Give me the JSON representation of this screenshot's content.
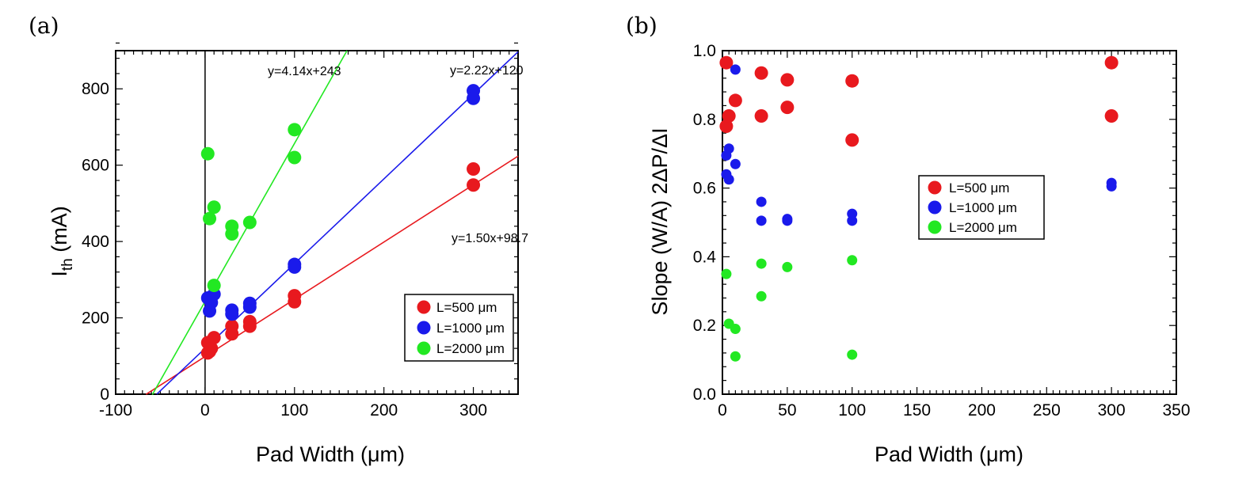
{
  "chart_data": [
    {
      "type": "scatter",
      "panel_label": "(a)",
      "xlabel": "Pad Width  (μm)",
      "ylabel": "I",
      "ylabel_sub": "th",
      "ylabel_unit": " (mA)",
      "xlim": [
        -100,
        350
      ],
      "ylim": [
        0,
        900
      ],
      "xticks": [
        -100,
        0,
        100,
        200,
        300
      ],
      "yticks": [
        0,
        200,
        400,
        600,
        800
      ],
      "vertical_zero_line": true,
      "series": [
        {
          "name": "L=500  μm",
          "color": "#e8191e",
          "x": [
            3,
            3,
            5,
            7,
            10,
            30,
            30,
            50,
            50,
            100,
            100,
            300,
            300
          ],
          "y": [
            135,
            108,
            112,
            120,
            148,
            178,
            158,
            190,
            178,
            258,
            242,
            590,
            548
          ]
        },
        {
          "name": "L=1000 μm",
          "color": "#1a1aeb",
          "x": [
            3,
            5,
            7,
            10,
            30,
            30,
            50,
            50,
            100,
            100,
            300,
            300
          ],
          "y": [
            252,
            218,
            240,
            262,
            220,
            210,
            238,
            228,
            340,
            333,
            795,
            775
          ]
        },
        {
          "name": "L=2000  μm",
          "color": "#22e822",
          "x": [
            3,
            5,
            10,
            10,
            30,
            30,
            50,
            100,
            100
          ],
          "y": [
            630,
            460,
            490,
            285,
            440,
            420,
            450,
            693,
            620
          ]
        }
      ],
      "fits": [
        {
          "label": "y=1.50x+98.7",
          "slope": 1.5,
          "intercept": 98.7,
          "color": "#e8191e",
          "x_range": [
            -66,
            350
          ]
        },
        {
          "label": "y=2.22x+120",
          "slope": 2.22,
          "intercept": 120,
          "color": "#1a1aeb",
          "x_range": [
            -54,
            350
          ]
        },
        {
          "label": "y=4.14x+243",
          "slope": 4.14,
          "intercept": 243,
          "color": "#22e822",
          "x_range": [
            -59,
            159
          ]
        }
      ],
      "legend_placement": "bottom-right"
    },
    {
      "type": "scatter",
      "panel_label": "(b)",
      "xlabel": "Pad Width (μm)",
      "ylabel": "Slope (W/A) 2ΔP/ΔI",
      "xlim": [
        0,
        350
      ],
      "ylim": [
        0,
        1.0
      ],
      "xticks": [
        0,
        50,
        100,
        150,
        200,
        250,
        300,
        350
      ],
      "yticks": [
        0.0,
        0.2,
        0.4,
        0.6,
        0.8,
        1.0
      ],
      "series": [
        {
          "name": "L=500 μm",
          "color": "#e8191e",
          "x": [
            3,
            3,
            5,
            10,
            30,
            30,
            50,
            50,
            100,
            100,
            300,
            300
          ],
          "y": [
            0.965,
            0.78,
            0.81,
            0.855,
            0.935,
            0.81,
            0.915,
            0.835,
            0.912,
            0.74,
            0.965,
            0.81
          ]
        },
        {
          "name": "L=1000 μm",
          "color": "#1a1aeb",
          "x": [
            3,
            3,
            5,
            5,
            10,
            10,
            30,
            30,
            50,
            50,
            100,
            100,
            300,
            300
          ],
          "y": [
            0.695,
            0.64,
            0.715,
            0.625,
            0.945,
            0.67,
            0.56,
            0.505,
            0.51,
            0.505,
            0.525,
            0.505,
            0.615,
            0.605
          ]
        },
        {
          "name": "L=2000 μm",
          "color": "#22e822",
          "x": [
            3,
            5,
            10,
            10,
            30,
            30,
            50,
            100,
            100
          ],
          "y": [
            0.35,
            0.205,
            0.19,
            0.11,
            0.38,
            0.285,
            0.37,
            0.39,
            0.115
          ]
        }
      ],
      "legend_placement": "center"
    }
  ]
}
